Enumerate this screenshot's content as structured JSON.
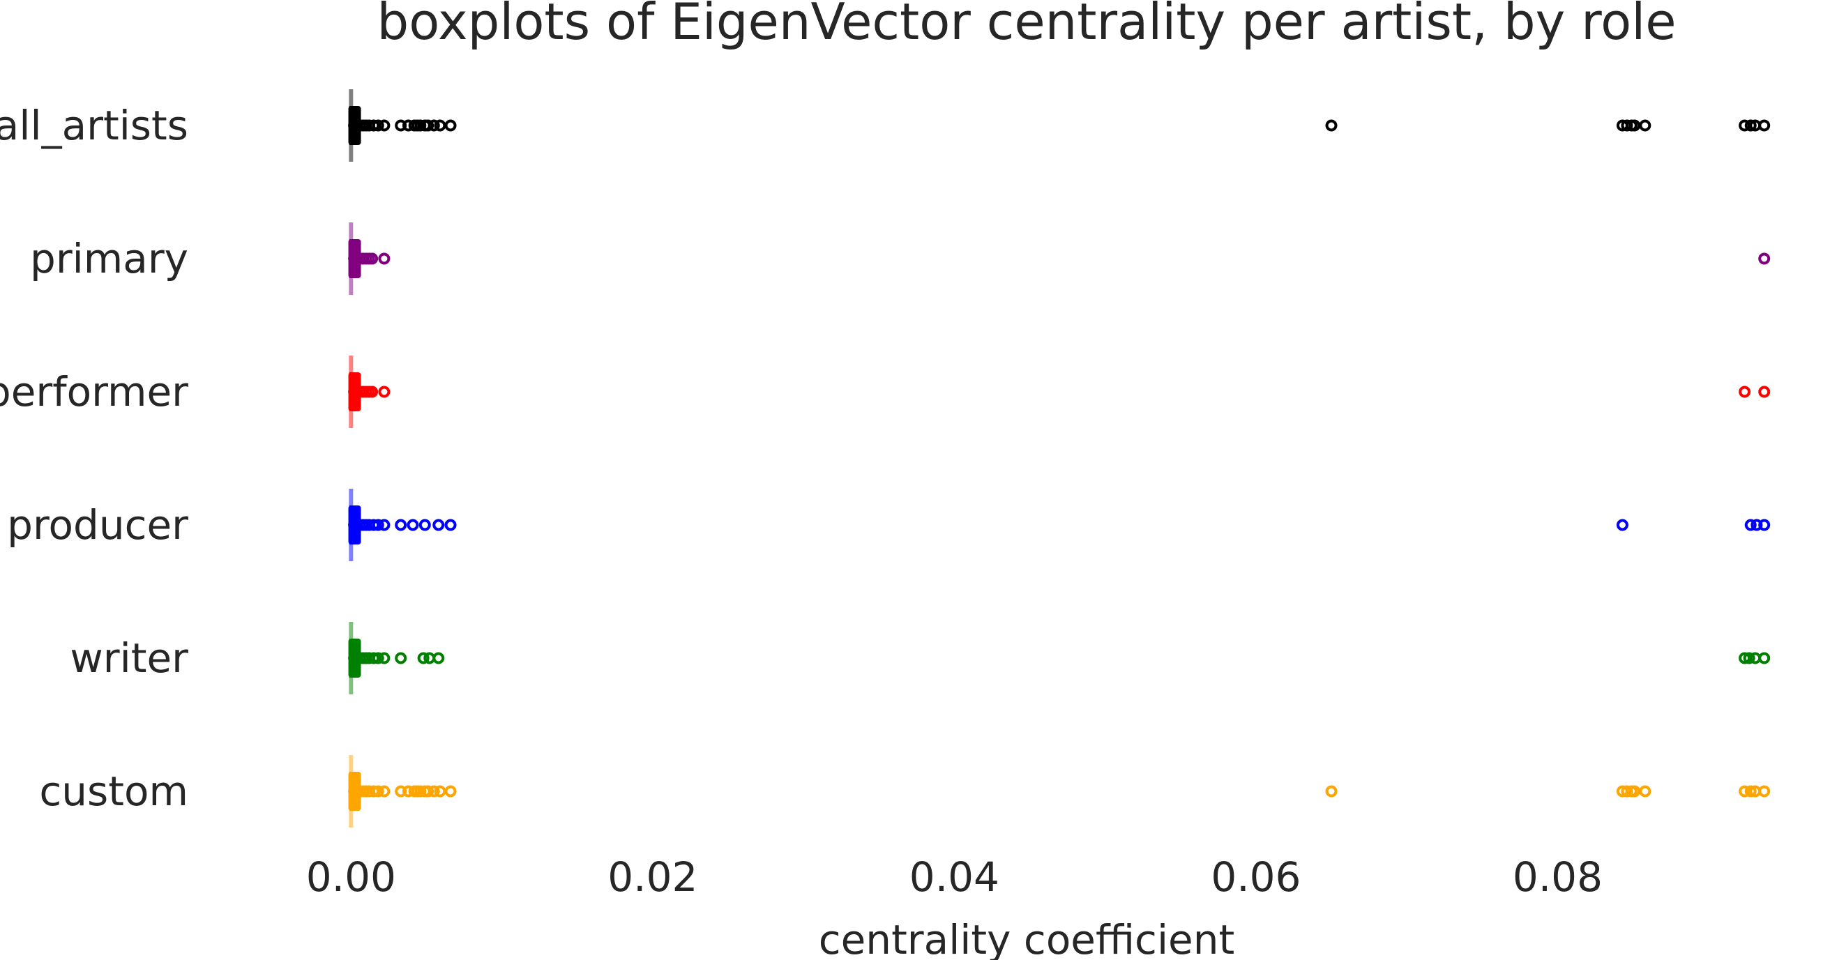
{
  "chart_data": {
    "type": "boxplot",
    "title": "boxplots of EigenVector centrality per artist, by role",
    "xlabel": "centrality coefficient",
    "ylabel": "",
    "xlim": [
      -0.0045,
      0.0945
    ],
    "xticks": [
      {
        "value": 0.0,
        "label": "0.00"
      },
      {
        "value": 0.02,
        "label": "0.02"
      },
      {
        "value": 0.04,
        "label": "0.04"
      },
      {
        "value": 0.06,
        "label": "0.06"
      },
      {
        "value": 0.08,
        "label": "0.08"
      }
    ],
    "grid": false,
    "orientation": "horizontal",
    "categories": [
      "all_artists",
      "primary",
      "performer",
      "producer",
      "writer",
      "custom"
    ],
    "series": [
      {
        "category": "all_artists",
        "color": "#000000",
        "whisker_color": "#808080",
        "box": {
          "min": 0.0,
          "q1": 1e-05,
          "median": 3e-05,
          "q3": 6e-05,
          "max": 0.00015
        },
        "outliers": [
          0.0002,
          0.0003,
          0.0004,
          0.0006,
          0.0008,
          0.001,
          0.0012,
          0.0015,
          0.0018,
          0.0022,
          0.0033,
          0.0038,
          0.0042,
          0.0044,
          0.0046,
          0.0049,
          0.0051,
          0.0055,
          0.0059,
          0.0066,
          0.065,
          0.0843,
          0.0846,
          0.0849,
          0.0851,
          0.0858,
          0.0924,
          0.0928,
          0.0931,
          0.0937
        ]
      },
      {
        "category": "primary",
        "color": "#800080",
        "whisker_color": "#c080c0",
        "box": {
          "min": 0.0,
          "q1": 1e-05,
          "median": 3e-05,
          "q3": 6e-05,
          "max": 0.00015
        },
        "outliers": [
          0.0002,
          0.0003,
          0.0004,
          0.0006,
          0.0008,
          0.001,
          0.0012,
          0.0014,
          0.0022,
          0.0937
        ]
      },
      {
        "category": "performer",
        "color": "#ff0000",
        "whisker_color": "#ff8080",
        "box": {
          "min": 0.0,
          "q1": 1e-05,
          "median": 3e-05,
          "q3": 6e-05,
          "max": 0.00015
        },
        "outliers": [
          0.0002,
          0.0003,
          0.0004,
          0.0006,
          0.0008,
          0.001,
          0.0012,
          0.0014,
          0.0022,
          0.0924,
          0.0937
        ]
      },
      {
        "category": "producer",
        "color": "#0000ff",
        "whisker_color": "#8080ff",
        "box": {
          "min": 0.0,
          "q1": 1e-05,
          "median": 3e-05,
          "q3": 6e-05,
          "max": 0.00015
        },
        "outliers": [
          0.0002,
          0.0003,
          0.0004,
          0.0006,
          0.0008,
          0.001,
          0.0012,
          0.0015,
          0.0018,
          0.0022,
          0.0033,
          0.0041,
          0.0049,
          0.0058,
          0.0066,
          0.0843,
          0.0928,
          0.0932,
          0.0937
        ]
      },
      {
        "category": "writer",
        "color": "#008000",
        "whisker_color": "#80c080",
        "box": {
          "min": 0.0,
          "q1": 1e-05,
          "median": 3e-05,
          "q3": 6e-05,
          "max": 0.00015
        },
        "outliers": [
          0.0002,
          0.0003,
          0.0004,
          0.0006,
          0.0008,
          0.001,
          0.0012,
          0.0015,
          0.0018,
          0.0022,
          0.0033,
          0.0048,
          0.0052,
          0.0058,
          0.0924,
          0.0927,
          0.0931,
          0.0937
        ]
      },
      {
        "category": "custom",
        "color": "#ffa500",
        "whisker_color": "#ffd280",
        "box": {
          "min": 0.0,
          "q1": 1e-05,
          "median": 3e-05,
          "q3": 6e-05,
          "max": 0.00015
        },
        "outliers": [
          0.0002,
          0.0003,
          0.0004,
          0.0006,
          0.0008,
          0.001,
          0.0012,
          0.0015,
          0.0018,
          0.0022,
          0.0033,
          0.0038,
          0.0042,
          0.0044,
          0.0046,
          0.0049,
          0.0051,
          0.0055,
          0.0059,
          0.0066,
          0.065,
          0.0843,
          0.0846,
          0.0849,
          0.0851,
          0.0858,
          0.0924,
          0.0928,
          0.0931,
          0.0937
        ]
      }
    ]
  }
}
